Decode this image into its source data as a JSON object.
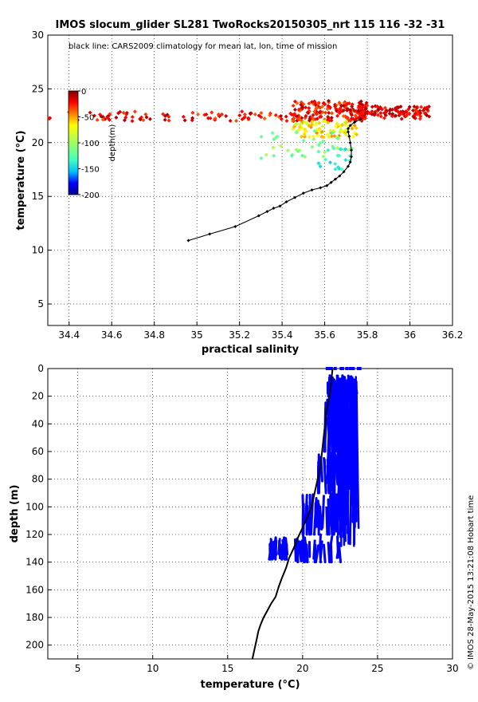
{
  "chart_data": [
    {
      "type": "scatter",
      "title": "IMOS slocum_glider SL281 TwoRocks20150305_nrt 115  116  -32  -31",
      "annotation": "black line: CARS2009 climatology for mean lat, lon, time of mission",
      "xlabel": "practical salinity",
      "ylabel": "temperature (°C)",
      "xlim": [
        34.3,
        36.2
      ],
      "ylim": [
        3,
        30
      ],
      "xticks": [
        "34.4",
        "34.6",
        "34.8",
        "35",
        "35.2",
        "35.4",
        "35.6",
        "35.8",
        "36",
        "36.2"
      ],
      "yticks": [
        "5",
        "10",
        "15",
        "20",
        "25",
        "30"
      ],
      "grid": "dotted",
      "colorbar": {
        "label": "depth(m)",
        "ticks": [
          "0",
          "-50",
          "-100",
          "-150",
          "-200"
        ],
        "range": [
          -200,
          0
        ],
        "colormap": [
          "#00008f",
          "#0000ff",
          "#00c0ff",
          "#40ffbf",
          "#7fff7f",
          "#c0ff40",
          "#ffff00",
          "#ff8000",
          "#ff0000",
          "#800000"
        ]
      },
      "climatology_line": {
        "x": [
          34.96,
          35.06,
          35.18,
          35.29,
          35.33,
          35.36,
          35.39,
          35.42,
          35.46,
          35.5,
          35.54,
          35.58,
          35.61,
          35.63,
          35.65,
          35.67,
          35.69,
          35.71,
          35.72,
          35.725,
          35.725,
          35.72,
          35.715,
          35.71,
          35.71,
          35.72,
          35.74,
          35.77
        ],
        "y": [
          10.9,
          11.5,
          12.2,
          13.2,
          13.6,
          13.9,
          14.1,
          14.5,
          14.9,
          15.3,
          15.6,
          15.8,
          16.0,
          16.3,
          16.6,
          16.9,
          17.3,
          17.8,
          18.2,
          18.7,
          19.3,
          20.0,
          20.6,
          21.0,
          21.3,
          21.6,
          21.9,
          22.2
        ]
      },
      "glider_clusters": [
        {
          "x": [
            34.3,
            35.45
          ],
          "y": [
            22.0,
            22.9
          ],
          "depth": [
            -40,
            -5
          ],
          "count": 90
        },
        {
          "x": [
            35.45,
            35.8
          ],
          "y": [
            22.0,
            23.9
          ],
          "depth": [
            -40,
            -5
          ],
          "count": 180
        },
        {
          "x": [
            35.75,
            36.1
          ],
          "y": [
            22.2,
            23.4
          ],
          "depth": [
            -30,
            -5
          ],
          "count": 120
        },
        {
          "x": [
            35.45,
            35.75
          ],
          "y": [
            20.5,
            22.0
          ],
          "depth": [
            -90,
            -45
          ],
          "count": 90
        },
        {
          "x": [
            35.3,
            35.75
          ],
          "y": [
            18.5,
            21.2
          ],
          "depth": [
            -130,
            -90
          ],
          "count": 40
        },
        {
          "x": [
            35.55,
            35.72
          ],
          "y": [
            17.5,
            19.5
          ],
          "depth": [
            -150,
            -125
          ],
          "count": 20
        }
      ]
    },
    {
      "type": "scatter",
      "xlabel": "temperature (°C)",
      "ylabel": "depth (m)",
      "xlim": [
        3,
        30
      ],
      "ylim": [
        210,
        0
      ],
      "xticks": [
        "5",
        "10",
        "15",
        "20",
        "25",
        "30"
      ],
      "yticks": [
        "0",
        "20",
        "40",
        "60",
        "80",
        "100",
        "120",
        "140",
        "160",
        "180",
        "200"
      ],
      "grid": "dotted",
      "glider_color": "#0000ff",
      "climatology_line": {
        "x": [
          22.0,
          21.9,
          21.8,
          21.6,
          21.5,
          21.4,
          21.3,
          21.2,
          21.0,
          20.8,
          20.6,
          20.3,
          20.0,
          19.7,
          19.4,
          19.1,
          18.9,
          18.6,
          18.4,
          18.2,
          17.9,
          17.6,
          17.4,
          17.2,
          17.05,
          16.95,
          16.85,
          16.75,
          16.65
        ],
        "y": [
          0,
          10,
          20,
          30,
          40,
          50,
          60,
          70,
          80,
          90,
          100,
          108,
          115,
          122,
          130,
          137,
          144,
          152,
          158,
          165,
          170,
          176,
          180,
          185,
          190,
          195,
          200,
          205,
          210
        ]
      },
      "glider_profiles": [
        {
          "x": [
            21.5,
            23.9
          ],
          "depth": [
            0,
            0
          ]
        },
        {
          "x": [
            21.6,
            23.6
          ],
          "depth": [
            5,
            20
          ]
        },
        {
          "x": [
            21.5,
            23.5
          ],
          "depth": [
            20,
            60
          ]
        },
        {
          "x": [
            21.0,
            23.0
          ],
          "depth": [
            60,
            90
          ]
        },
        {
          "x": [
            20.0,
            22.6
          ],
          "depth": [
            90,
            120
          ]
        },
        {
          "x": [
            19.5,
            22.5
          ],
          "depth": [
            120,
            140
          ]
        },
        {
          "x": [
            17.8,
            19.0
          ],
          "depth": [
            122,
            138
          ]
        }
      ]
    }
  ],
  "credit": "© IMOS 28-May-2015 13:21:08 Hobart time"
}
